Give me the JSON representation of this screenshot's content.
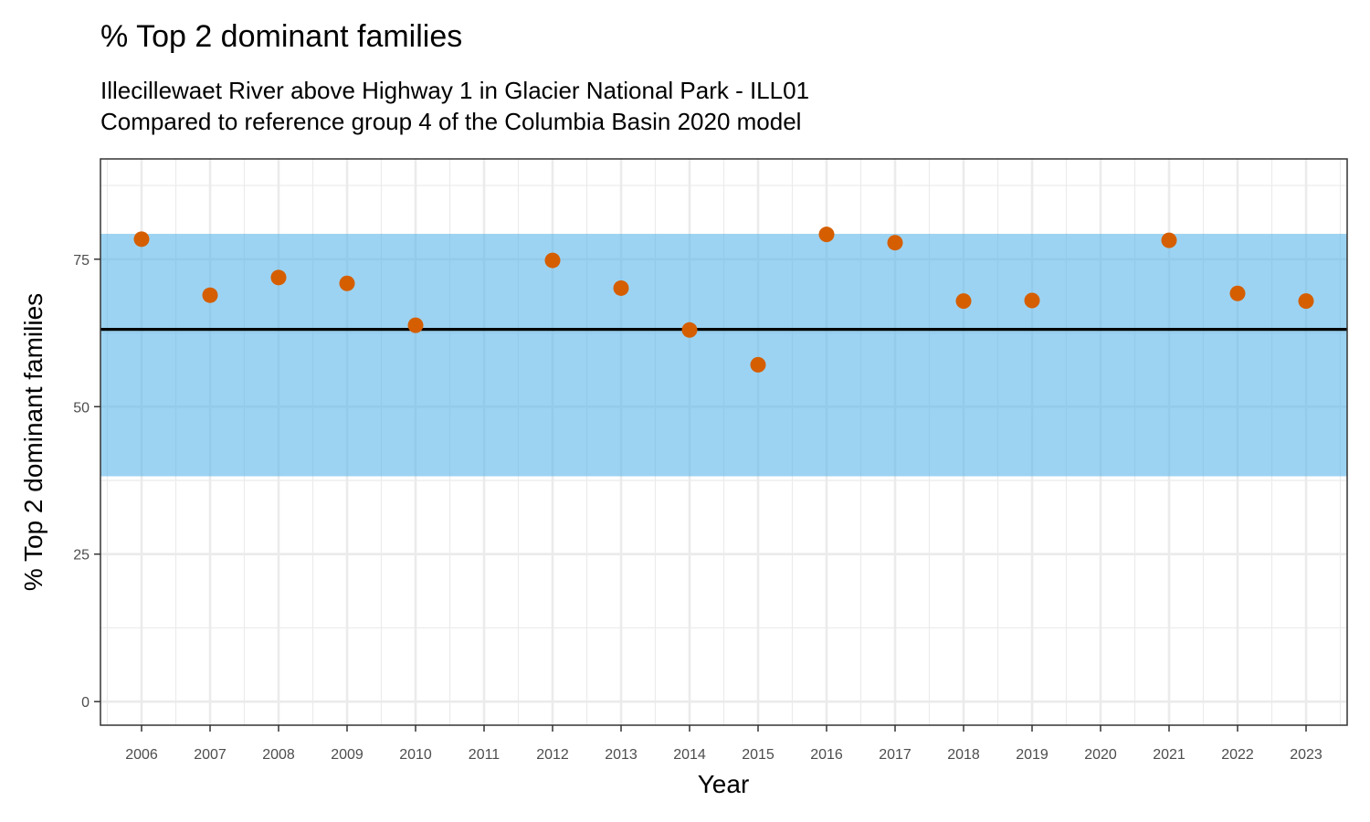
{
  "chart_data": {
    "type": "scatter",
    "title": "% Top 2 dominant families",
    "subtitle_lines": [
      "Illecillewaet River above Highway 1 in Glacier National Park - ILL01",
      "Compared to reference group 4 of the Columbia Basin 2020 model"
    ],
    "xlabel": "Year",
    "ylabel": "% Top 2 dominant families",
    "categories": [
      "2006",
      "2007",
      "2008",
      "2009",
      "2010",
      "2011",
      "2012",
      "2013",
      "2014",
      "2015",
      "2016",
      "2017",
      "2018",
      "2019",
      "2020",
      "2021",
      "2022",
      "2023"
    ],
    "series": [
      {
        "values": [
          78.4,
          68.9,
          71.9,
          70.9,
          63.8,
          null,
          74.8,
          70.1,
          63.0,
          57.1,
          79.2,
          77.8,
          67.9,
          68.0,
          null,
          78.2,
          69.2,
          67.9
        ],
        "color": "#D55E00"
      }
    ],
    "reference_line": {
      "value": 63.1,
      "color": "#000000"
    },
    "reference_band": {
      "min": 38.2,
      "max": 79.3,
      "color": "#56B4E9"
    },
    "yticks": [
      0,
      25,
      50,
      75
    ],
    "ylim": [
      -4,
      92
    ],
    "grid": true
  }
}
